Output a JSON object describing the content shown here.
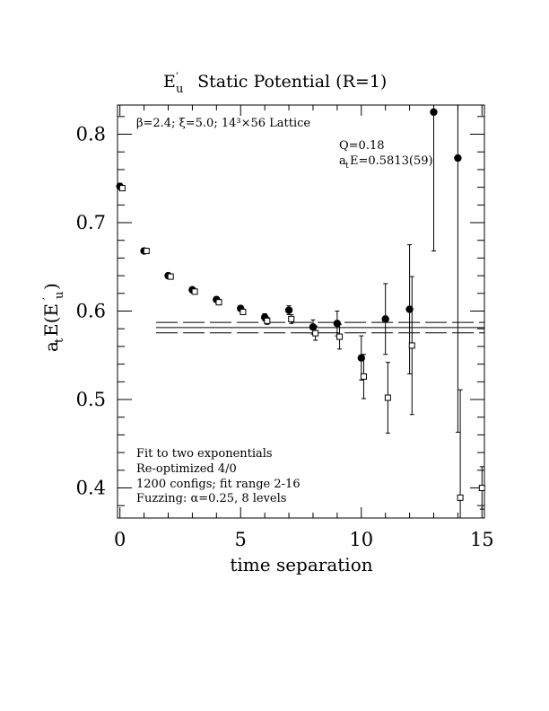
{
  "chart_data": {
    "type": "scatter",
    "title": "E′u  Static Potential (R=1)",
    "title_parts": {
      "main": "E",
      "sub": "u",
      "prime": "′",
      "rest": "  Static Potential (R=1)"
    },
    "xlabel": "time separation",
    "ylabel_parts": {
      "a": "a",
      "t": "t",
      "E": "E(E",
      "prime": "′",
      "u": "u",
      "close": ")"
    },
    "xlim": [
      -0.1,
      15.1
    ],
    "ylim": [
      0.366,
      0.833
    ],
    "xticks": [
      0,
      5,
      10,
      15
    ],
    "xtick_labels": [
      "0",
      "5",
      "10",
      "15"
    ],
    "yticks": [
      0.4,
      0.5,
      0.6,
      0.7,
      0.8
    ],
    "ytick_labels": [
      "0.4",
      "0.5",
      "0.6",
      "0.7",
      "0.8"
    ],
    "annotations": {
      "top_left": "β=2.4; ξ=5.0; 14³×56 Lattice",
      "q_value": "Q=0.18",
      "fit_energy": {
        "a": "a",
        "t": "t",
        "rest": "E=0.5813(59)"
      },
      "method_lines": [
        "Fit to two exponentials",
        "Re-optimized 4/0",
        "1200 configs; fit range 2-16",
        "Fuzzing: α=0.25, 8 levels"
      ]
    },
    "fit": {
      "value": 0.5813,
      "error": 0.0059,
      "x_range": [
        1.5,
        15.1
      ]
    },
    "series": [
      {
        "marker": "filled-circle",
        "points": [
          {
            "x": 0,
            "y": 0.741,
            "err": 0.002
          },
          {
            "x": 1,
            "y": 0.668,
            "err": 0.002
          },
          {
            "x": 2,
            "y": 0.64,
            "err": 0.002
          },
          {
            "x": 3,
            "y": 0.624,
            "err": 0.002
          },
          {
            "x": 4,
            "y": 0.613,
            "err": 0.003
          },
          {
            "x": 5,
            "y": 0.603,
            "err": 0.003
          },
          {
            "x": 6,
            "y": 0.593,
            "err": 0.004
          },
          {
            "x": 7,
            "y": 0.601,
            "err": 0.005
          },
          {
            "x": 8,
            "y": 0.582,
            "err": 0.008
          },
          {
            "x": 9,
            "y": 0.586,
            "err": 0.014
          },
          {
            "x": 10,
            "y": 0.547,
            "err": 0.025
          },
          {
            "x": 11,
            "y": 0.591,
            "err": 0.04
          },
          {
            "x": 12,
            "y": 0.602,
            "err": 0.073
          },
          {
            "x": 13,
            "y": 0.825,
            "err": 0.157
          },
          {
            "x": 14,
            "y": 0.773,
            "err": 0.31
          }
        ]
      },
      {
        "marker": "open-square",
        "points": [
          {
            "x": 0.1,
            "y": 0.739,
            "err": 0.002
          },
          {
            "x": 1.1,
            "y": 0.668,
            "err": 0.002
          },
          {
            "x": 2.1,
            "y": 0.639,
            "err": 0.002
          },
          {
            "x": 3.1,
            "y": 0.622,
            "err": 0.002
          },
          {
            "x": 4.1,
            "y": 0.61,
            "err": 0.003
          },
          {
            "x": 5.1,
            "y": 0.599,
            "err": 0.003
          },
          {
            "x": 6.1,
            "y": 0.589,
            "err": 0.004
          },
          {
            "x": 7.1,
            "y": 0.591,
            "err": 0.005
          },
          {
            "x": 8.1,
            "y": 0.575,
            "err": 0.008
          },
          {
            "x": 9.1,
            "y": 0.571,
            "err": 0.014
          },
          {
            "x": 10.1,
            "y": 0.526,
            "err": 0.025
          },
          {
            "x": 11.1,
            "y": 0.502,
            "err": 0.04
          },
          {
            "x": 12.1,
            "y": 0.561,
            "err": 0.078
          },
          {
            "x": 14.1,
            "y": 0.389,
            "err": 0.122
          },
          {
            "x": 15.0,
            "y": 0.4,
            "err": 0.024
          }
        ]
      }
    ]
  }
}
